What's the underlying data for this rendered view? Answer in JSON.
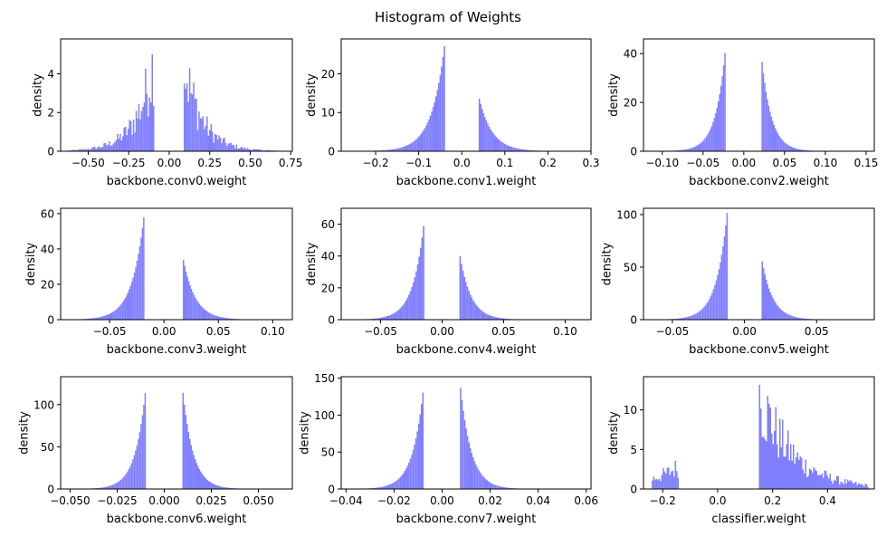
{
  "title": "Histogram of Weights",
  "colors": {
    "bar": "#7f7fff",
    "axis": "#000000",
    "background": "#ffffff"
  },
  "chart_data": [
    {
      "type": "bar",
      "xlabel": "backbone.conv0.weight",
      "ylabel": "density",
      "xlim": [
        -0.67,
        0.76
      ],
      "ylim": [
        0,
        5.8
      ],
      "xticks": [
        -0.5,
        -0.25,
        0.0,
        0.25,
        0.5,
        0.75
      ],
      "xticklabels": [
        "−0.50",
        "−0.25",
        "0.00",
        "0.25",
        "0.50",
        "0.75"
      ],
      "yticks": [
        0,
        2,
        4
      ],
      "yticklabels": [
        "0",
        "2",
        "4"
      ],
      "distribution": {
        "gap": [
          -0.095,
          0.09
        ],
        "left_peak": 5.2,
        "right_peak": 5.1,
        "left_min": -0.62,
        "right_max": 0.7,
        "decay": 0.11,
        "noisy": true
      }
    },
    {
      "type": "bar",
      "xlabel": "backbone.conv1.weight",
      "ylabel": "density",
      "xlim": [
        -0.28,
        0.3
      ],
      "ylim": [
        0,
        29
      ],
      "xticks": [
        -0.2,
        -0.1,
        0.0,
        0.1,
        0.2,
        0.3
      ],
      "xticklabels": [
        "−0.2",
        "−0.1",
        "0.0",
        "0.1",
        "0.2",
        "0.3"
      ],
      "yticks": [
        0,
        10,
        20
      ],
      "yticklabels": [
        "0",
        "10",
        "20"
      ],
      "distribution": {
        "gap": [
          -0.04,
          0.04
        ],
        "left_peak": 27.5,
        "right_peak": 14,
        "left_min": -0.25,
        "right_max": 0.27,
        "decay": 0.03,
        "noisy": false
      }
    },
    {
      "type": "bar",
      "xlabel": "backbone.conv2.weight",
      "ylabel": "density",
      "xlim": [
        -0.123,
        0.16
      ],
      "ylim": [
        0,
        46
      ],
      "xticks": [
        -0.1,
        -0.05,
        0.0,
        0.05,
        0.1,
        0.15
      ],
      "xticklabels": [
        "−0.10",
        "−0.05",
        "0.00",
        "0.05",
        "0.10",
        "0.15"
      ],
      "yticks": [
        0,
        20,
        40
      ],
      "yticklabels": [
        "0",
        "20",
        "40"
      ],
      "distribution": {
        "gap": [
          -0.022,
          0.022
        ],
        "left_peak": 44,
        "right_peak": 38,
        "left_min": -0.11,
        "right_max": 0.15,
        "decay": 0.012,
        "noisy": false
      }
    },
    {
      "type": "bar",
      "xlabel": "backbone.conv3.weight",
      "ylabel": "density",
      "xlim": [
        -0.095,
        0.118
      ],
      "ylim": [
        0,
        63
      ],
      "xticks": [
        -0.05,
        0.0,
        0.05,
        0.1
      ],
      "xticklabels": [
        "−0.05",
        "0.00",
        "0.05",
        "0.10"
      ],
      "yticks": [
        0,
        20,
        40,
        60
      ],
      "yticklabels": [
        "0",
        "20",
        "40",
        "60"
      ],
      "distribution": {
        "gap": [
          -0.018,
          0.017
        ],
        "left_peak": 61,
        "right_peak": 37,
        "left_min": -0.085,
        "right_max": 0.11,
        "decay": 0.011,
        "noisy": false
      }
    },
    {
      "type": "bar",
      "xlabel": "backbone.conv4.weight",
      "ylabel": "density",
      "xlim": [
        -0.082,
        0.121
      ],
      "ylim": [
        0,
        70
      ],
      "xticks": [
        -0.05,
        0.0,
        0.05,
        0.1
      ],
      "xticklabels": [
        "−0.05",
        "0.00",
        "0.05",
        "0.10"
      ],
      "yticks": [
        0,
        20,
        40,
        60
      ],
      "yticklabels": [
        "0",
        "20",
        "40",
        "60"
      ],
      "distribution": {
        "gap": [
          -0.014,
          0.014
        ],
        "left_peak": 66,
        "right_peak": 43,
        "left_min": -0.075,
        "right_max": 0.115,
        "decay": 0.009,
        "noisy": false
      }
    },
    {
      "type": "bar",
      "xlabel": "backbone.conv5.weight",
      "ylabel": "density",
      "xlim": [
        -0.07,
        0.09
      ],
      "ylim": [
        0,
        106
      ],
      "xticks": [
        -0.05,
        0.0,
        0.05
      ],
      "xticklabels": [
        "−0.05",
        "0.00",
        "0.05"
      ],
      "yticks": [
        0,
        50,
        100
      ],
      "yticklabels": [
        "0",
        "50",
        "100"
      ],
      "distribution": {
        "gap": [
          -0.012,
          0.012
        ],
        "left_peak": 102,
        "right_peak": 58,
        "left_min": -0.065,
        "right_max": 0.085,
        "decay": 0.0075,
        "noisy": false
      }
    },
    {
      "type": "bar",
      "xlabel": "backbone.conv6.weight",
      "ylabel": "density",
      "xlim": [
        -0.055,
        0.068
      ],
      "ylim": [
        0,
        133
      ],
      "xticks": [
        -0.05,
        -0.025,
        0.0,
        0.025,
        0.05
      ],
      "xticklabels": [
        "−0.050",
        "−0.025",
        "0.000",
        "0.025",
        "0.050"
      ],
      "yticks": [
        0,
        50,
        100
      ],
      "yticklabels": [
        "0",
        "50",
        "100"
      ],
      "distribution": {
        "gap": [
          -0.0095,
          0.0095
        ],
        "left_peak": 127,
        "right_peak": 125,
        "left_min": -0.05,
        "right_max": 0.065,
        "decay": 0.0055,
        "noisy": false
      }
    },
    {
      "type": "bar",
      "xlabel": "backbone.conv7.weight",
      "ylabel": "density",
      "xlim": [
        -0.042,
        0.062
      ],
      "ylim": [
        0,
        152
      ],
      "xticks": [
        -0.04,
        -0.02,
        0.0,
        0.02,
        0.04,
        0.06
      ],
      "xticklabels": [
        "−0.04",
        "−0.02",
        "0.00",
        "0.02",
        "0.04",
        "0.06"
      ],
      "yticks": [
        0,
        50,
        100,
        150
      ],
      "yticklabels": [
        "0",
        "50",
        "100",
        "150"
      ],
      "distribution": {
        "gap": [
          -0.0075,
          0.0075
        ],
        "left_peak": 145,
        "right_peak": 144,
        "left_min": -0.035,
        "right_max": 0.058,
        "decay": 0.0045,
        "noisy": false
      }
    },
    {
      "type": "bar",
      "xlabel": "classifier.weight",
      "ylabel": "density",
      "xlim": [
        -0.27,
        0.57
      ],
      "ylim": [
        0,
        14.2
      ],
      "xticks": [
        -0.2,
        0.0,
        0.2,
        0.4
      ],
      "xticklabels": [
        "−0.2",
        "0.0",
        "0.2",
        "0.4"
      ],
      "yticks": [
        0,
        5,
        10
      ],
      "yticklabels": [
        "0",
        "5",
        "10"
      ],
      "distribution": {
        "gap": [
          -0.14,
          0.15
        ],
        "left_peak": 3.2,
        "right_peak": 13.5,
        "left_min": -0.24,
        "right_max": 0.55,
        "decay": 0.12,
        "noisy": true
      }
    }
  ]
}
